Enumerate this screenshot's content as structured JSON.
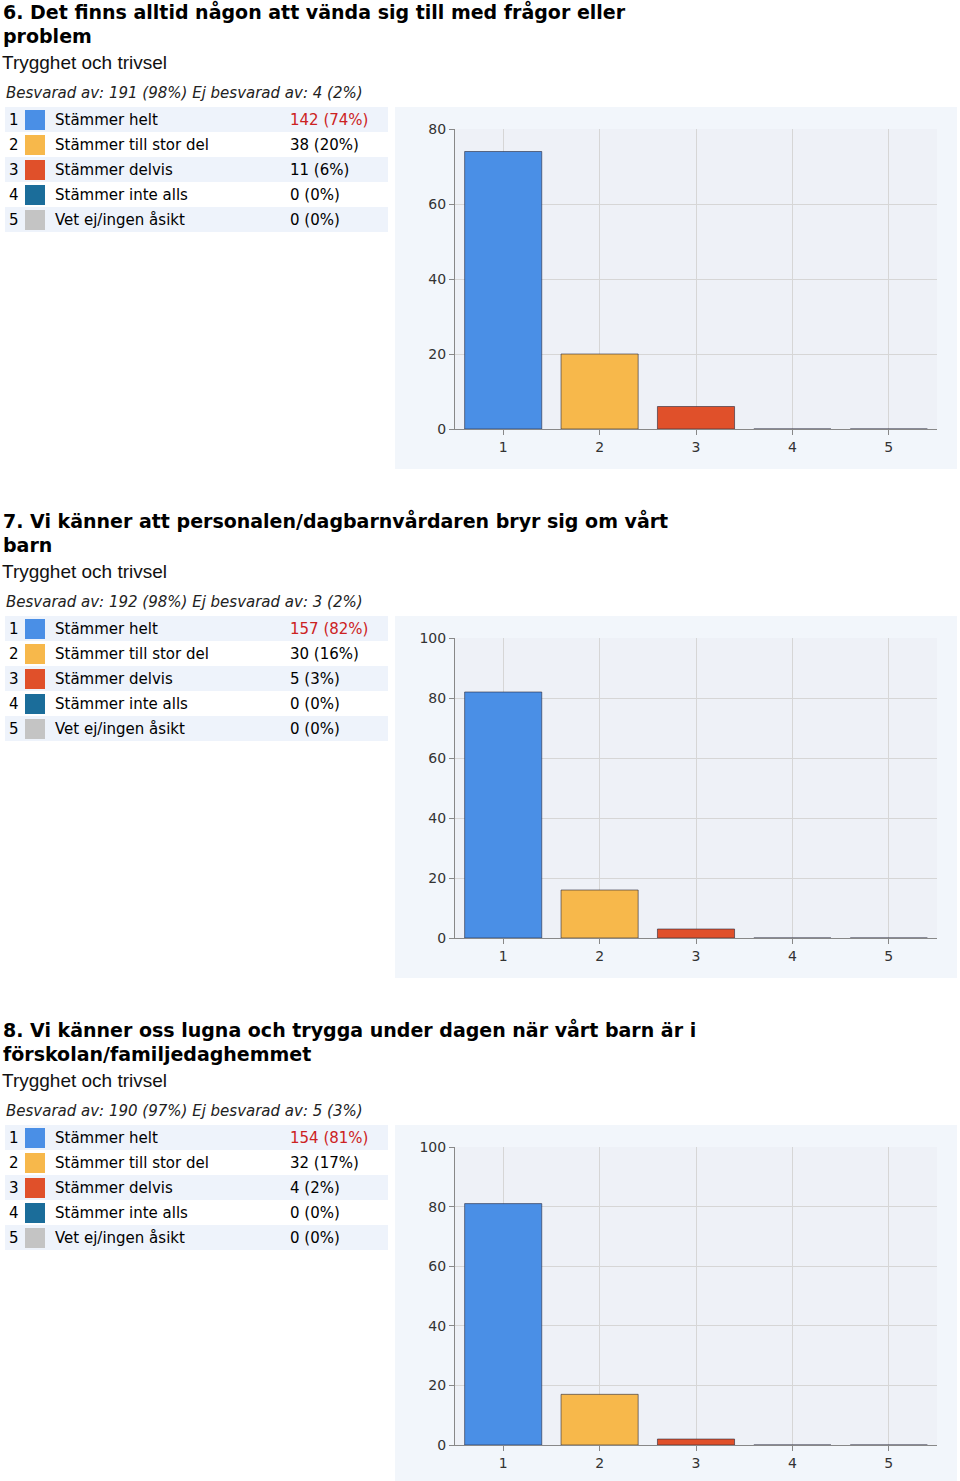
{
  "chart_data": [
    {
      "type": "bar",
      "title": "6. Det finns alltid någon att vända sig till med frågor eller problem",
      "subtitle": "Trygghet och trivsel",
      "note": "Besvarad av: 191 (98%) Ej besvarad av: 4 (2%)",
      "categories": [
        "1",
        "2",
        "3",
        "4",
        "5"
      ],
      "category_names": [
        "Stämmer helt",
        "Stämmer till stor del",
        "Stämmer delvis",
        "Stämmer inte alls",
        "Vet ej/ingen åsikt"
      ],
      "values": [
        74,
        20,
        6,
        0,
        0
      ],
      "value_labels": [
        "142 (74%)",
        "38 (20%)",
        "11 (6%)",
        "0 (0%)",
        "0 (0%)"
      ],
      "colors": [
        "#4a8fe6",
        "#f7b84b",
        "#e0502a",
        "#1b6d9a",
        "#c4c4c4"
      ],
      "ylim": [
        0,
        80
      ],
      "yticks": [
        0,
        20,
        40,
        60,
        80
      ],
      "grid": true
    },
    {
      "type": "bar",
      "title": "7. Vi känner att personalen/dagbarnvårdaren bryr sig om vårt barn",
      "subtitle": "Trygghet och trivsel",
      "note": "Besvarad av: 192 (98%) Ej besvarad av: 3 (2%)",
      "categories": [
        "1",
        "2",
        "3",
        "4",
        "5"
      ],
      "category_names": [
        "Stämmer helt",
        "Stämmer till stor del",
        "Stämmer delvis",
        "Stämmer inte alls",
        "Vet ej/ingen åsikt"
      ],
      "values": [
        82,
        16,
        3,
        0,
        0
      ],
      "value_labels": [
        "157 (82%)",
        "30 (16%)",
        "5 (3%)",
        "0 (0%)",
        "0 (0%)"
      ],
      "colors": [
        "#4a8fe6",
        "#f7b84b",
        "#e0502a",
        "#1b6d9a",
        "#c4c4c4"
      ],
      "ylim": [
        0,
        100
      ],
      "yticks": [
        0,
        20,
        40,
        60,
        80,
        100
      ],
      "grid": true
    },
    {
      "type": "bar",
      "title": "8. Vi känner oss lugna och trygga under dagen när vårt barn är i förskolan/familjedaghemmet",
      "subtitle": "Trygghet och trivsel",
      "note": "Besvarad av: 190 (97%) Ej besvarad av: 5 (3%)",
      "categories": [
        "1",
        "2",
        "3",
        "4",
        "5"
      ],
      "category_names": [
        "Stämmer helt",
        "Stämmer till stor del",
        "Stämmer delvis",
        "Stämmer inte alls",
        "Vet ej/ingen åsikt"
      ],
      "values": [
        81,
        17,
        2,
        0,
        0
      ],
      "value_labels": [
        "154 (81%)",
        "32 (17%)",
        "4 (2%)",
        "0 (0%)",
        "0 (0%)"
      ],
      "colors": [
        "#4a8fe6",
        "#f7b84b",
        "#e0502a",
        "#1b6d9a",
        "#c4c4c4"
      ],
      "ylim": [
        0,
        100
      ],
      "yticks": [
        0,
        20,
        40,
        60,
        80,
        100
      ],
      "grid": true
    }
  ]
}
